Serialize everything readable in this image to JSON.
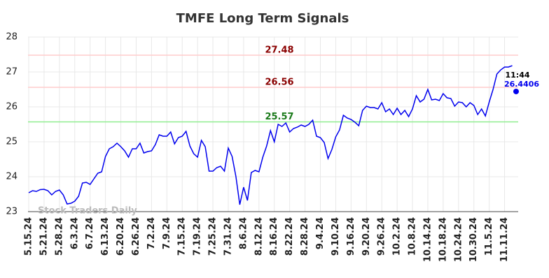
{
  "chart_data": {
    "type": "line",
    "title": "TMFE Long Term Signals",
    "categories": [
      "5.15.24",
      null,
      null,
      null,
      "5.21.24",
      null,
      null,
      null,
      "5.28.24",
      null,
      null,
      null,
      "6.3.24",
      null,
      null,
      null,
      "6.7.24",
      null,
      null,
      null,
      "6.13.24",
      null,
      null,
      null,
      "6.20.24",
      null,
      null,
      null,
      "6.26.24",
      null,
      null,
      null,
      "7.2.24",
      null,
      null,
      null,
      "7.9.24",
      null,
      null,
      null,
      "7.15.24",
      null,
      null,
      null,
      "7.19.24",
      null,
      null,
      null,
      "7.25.24",
      null,
      null,
      null,
      "7.31.24",
      null,
      null,
      null,
      "8.6.24",
      null,
      null,
      null,
      "8.12.24",
      null,
      null,
      null,
      "8.16.24",
      null,
      null,
      null,
      "8.22.24",
      null,
      null,
      null,
      "8.28.24",
      null,
      null,
      null,
      "9.4.24",
      null,
      null,
      null,
      "9.10.24",
      null,
      null,
      null,
      "9.16.24",
      null,
      null,
      null,
      "9.20.24",
      null,
      null,
      null,
      "9.26.24",
      null,
      null,
      null,
      "10.2.24",
      null,
      null,
      null,
      "10.8.24",
      null,
      null,
      null,
      "10.14.24",
      null,
      null,
      null,
      "10.18.24",
      null,
      null,
      null,
      "10.24.24",
      null,
      null,
      null,
      "10.30.24",
      null,
      null,
      null,
      "11.5.24",
      null,
      null,
      null,
      "11.11.24",
      null,
      null
    ],
    "series": [
      {
        "color": "#0000ee",
        "values": [
          23.54,
          23.6,
          23.58,
          23.63,
          23.64,
          23.6,
          23.48,
          23.58,
          23.62,
          23.48,
          23.22,
          23.24,
          23.3,
          23.44,
          23.82,
          23.84,
          23.78,
          23.94,
          24.1,
          24.14,
          24.58,
          24.8,
          24.86,
          24.96,
          24.86,
          24.74,
          24.56,
          24.8,
          24.8,
          24.96,
          24.68,
          24.72,
          24.74,
          24.92,
          25.2,
          25.16,
          25.16,
          25.28,
          24.94,
          25.12,
          25.16,
          25.3,
          24.88,
          24.66,
          24.56,
          25.04,
          24.86,
          24.16,
          24.16,
          24.26,
          24.3,
          24.16,
          24.82,
          24.58,
          24.0,
          23.2,
          23.7,
          23.32,
          24.12,
          24.18,
          24.14,
          24.56,
          24.88,
          25.32,
          25.0,
          25.5,
          25.44,
          25.54,
          25.28,
          25.38,
          25.42,
          25.48,
          25.44,
          25.5,
          25.62,
          25.16,
          25.12,
          24.98,
          24.52,
          24.78,
          25.14,
          25.34,
          25.76,
          25.68,
          25.64,
          25.56,
          25.46,
          25.9,
          26.02,
          25.98,
          25.98,
          25.94,
          26.12,
          25.86,
          25.94,
          25.78,
          25.96,
          25.78,
          25.9,
          25.72,
          25.94,
          26.32,
          26.14,
          26.22,
          26.5,
          26.2,
          26.22,
          26.18,
          26.38,
          26.26,
          26.24,
          26.02,
          26.14,
          26.12,
          26.0,
          26.12,
          26.04,
          25.78,
          25.94,
          25.74,
          26.14,
          26.5,
          26.94,
          27.06,
          27.14,
          27.14,
          27.18
        ]
      }
    ],
    "hlines": [
      {
        "value": 27.48,
        "color": "#ffcccc",
        "label_color": "#8b0000"
      },
      {
        "value": 26.56,
        "color": "#ffcccc",
        "label_color": "#8b0000"
      },
      {
        "value": 25.57,
        "color": "#90ee90",
        "label_color": "#1a7a1a"
      }
    ],
    "last": {
      "label": "11:44",
      "value": 26.4406,
      "color": "#0000ee"
    },
    "watermark": "Stock Traders Daily",
    "ylim": [
      23,
      28
    ],
    "yticks": [
      23,
      24,
      25,
      26,
      27,
      28
    ],
    "grid": true
  }
}
